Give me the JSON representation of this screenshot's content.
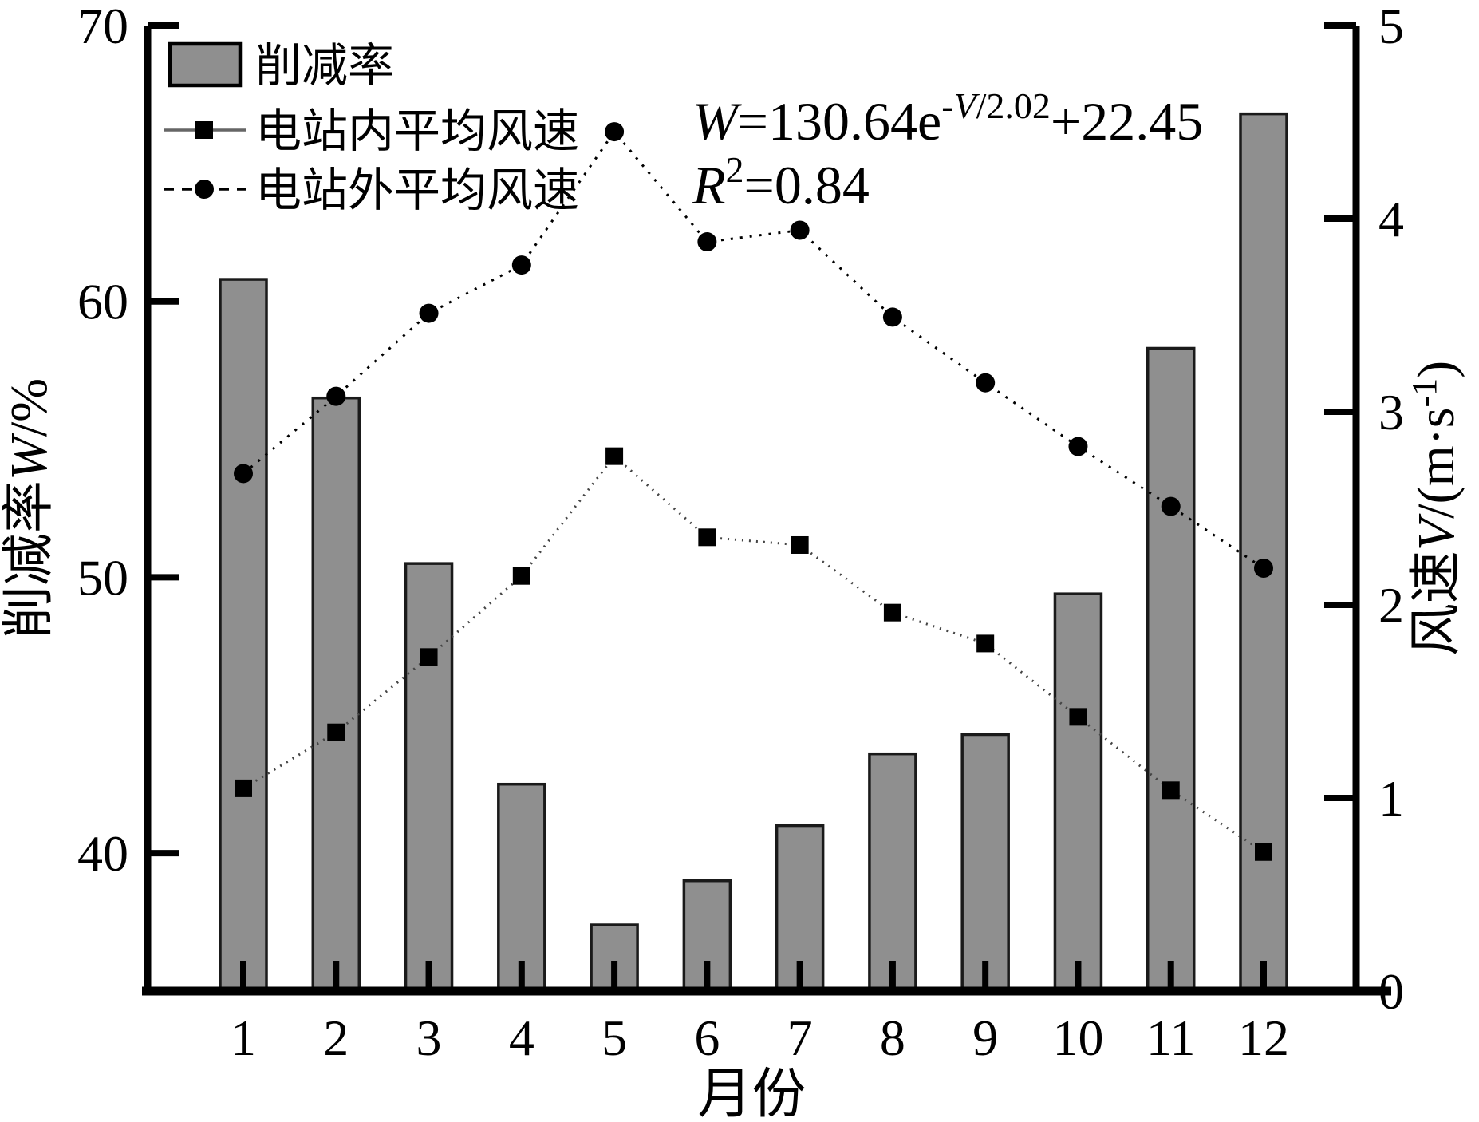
{
  "figure": {
    "background": "#ffffff",
    "equation": {
      "display": "W=130.64e^(-V/2.02)+22.45",
      "var": "W",
      "eq": "=130.64e",
      "exp_minus": "-",
      "exp_var": "V",
      "exp_rest": "/2.02",
      "tail": "+22.45"
    },
    "r_squared": {
      "display": "R2=0.84",
      "var": "R",
      "sup": "2",
      "rest": "=0.84"
    }
  },
  "chart_data": {
    "type": "bar",
    "subtype": "bar-and-line-combo",
    "categories": [
      1,
      2,
      3,
      4,
      5,
      6,
      7,
      8,
      9,
      10,
      11,
      12
    ],
    "xlabel": "月份",
    "left_axis": {
      "label": "削减率W/%",
      "label_parts": {
        "pre": "削减率",
        "italic": "W",
        "post": "/%"
      },
      "ticks": [
        70,
        60,
        50,
        40
      ],
      "range": [
        35,
        70
      ]
    },
    "right_axis": {
      "label": "风速V/(m·s-1)",
      "label_parts": {
        "pre": "风速",
        "italic": "V",
        "post": "/(m·s",
        "sup": "-1",
        "end": ")"
      },
      "ticks": [
        5,
        4,
        3,
        2,
        1,
        0
      ],
      "range": [
        0,
        5
      ]
    },
    "series": [
      {
        "name": "削减率",
        "type": "bar",
        "axis": "left",
        "color": "#8f8f8f",
        "border_color": "#1a1a1a",
        "values": [
          60.8,
          56.5,
          50.5,
          42.5,
          37.4,
          39.0,
          41.0,
          43.6,
          44.3,
          49.4,
          58.3,
          66.8
        ]
      },
      {
        "name": "电站内平均风速",
        "type": "line",
        "axis": "right",
        "marker": "square",
        "line_style": "fine-dotted",
        "color": "#444444",
        "marker_color": "#000000",
        "values": [
          1.05,
          1.34,
          1.73,
          2.15,
          2.77,
          2.35,
          2.31,
          1.96,
          1.8,
          1.42,
          1.04,
          0.72
        ]
      },
      {
        "name": "电站外平均风速",
        "type": "line",
        "axis": "right",
        "marker": "circle",
        "line_style": "dotted",
        "color": "#000000",
        "marker_color": "#000000",
        "values": [
          2.68,
          3.08,
          3.51,
          3.76,
          4.45,
          3.88,
          3.94,
          3.49,
          3.15,
          2.82,
          2.51,
          2.19
        ]
      }
    ],
    "legend": {
      "position": "top-left-inside",
      "items": [
        "削减率",
        "电站内平均风速",
        "电站外平均风速"
      ]
    },
    "grid": false
  }
}
